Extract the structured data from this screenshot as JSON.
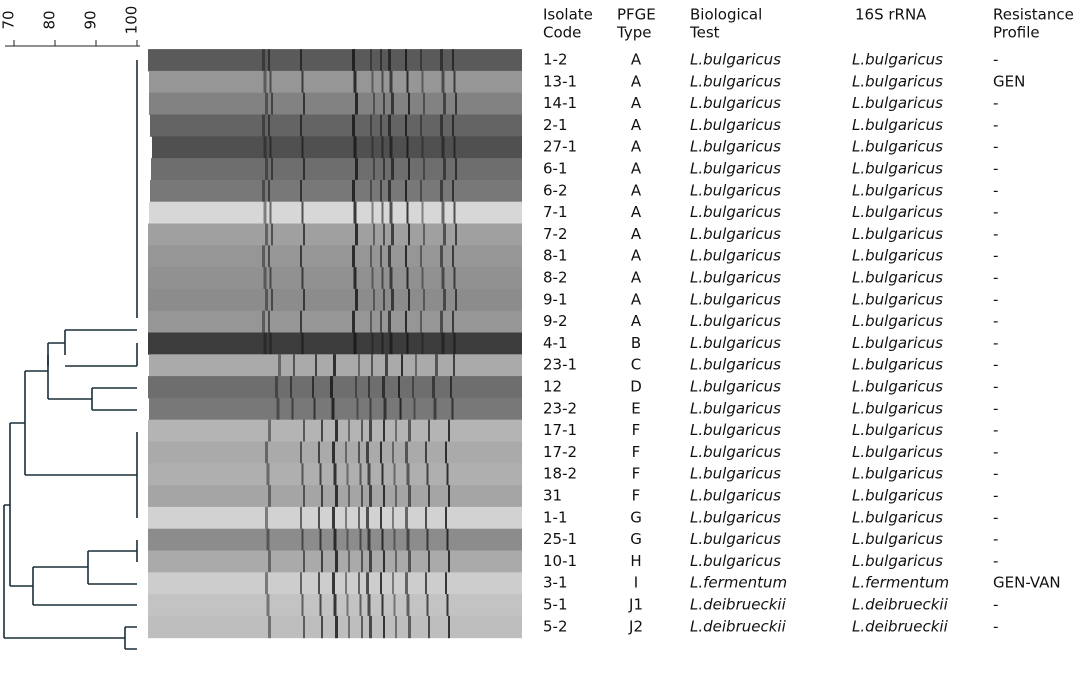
{
  "scale": {
    "ticks": [
      70,
      80,
      90,
      100
    ]
  },
  "table": {
    "headers": [
      [
        "Isolate",
        "Code"
      ],
      [
        "PFGE",
        "Type"
      ],
      [
        "Biological",
        "Test"
      ],
      [
        "16S rRNA"
      ],
      [
        "Resistance",
        "Profile"
      ]
    ],
    "rows": [
      [
        "1-2",
        "A",
        "L.bulgaricus",
        "L.bulgaricus",
        "-"
      ],
      [
        "13-1",
        "A",
        "L.bulgaricus",
        "L.bulgaricus",
        "GEN"
      ],
      [
        "14-1",
        "A",
        "L.bulgaricus",
        "L.bulgaricus",
        "-"
      ],
      [
        "2-1",
        "A",
        "L.bulgaricus",
        "L.bulgaricus",
        "-"
      ],
      [
        "27-1",
        "A",
        "L.bulgaricus",
        "L.bulgaricus",
        "-"
      ],
      [
        "6-1",
        "A",
        "L.bulgaricus",
        "L.bulgaricus",
        "-"
      ],
      [
        "6-2",
        "A",
        "L.bulgaricus",
        "L.bulgaricus",
        "-"
      ],
      [
        "7-1",
        "A",
        "L.bulgaricus",
        "L.bulgaricus",
        "-"
      ],
      [
        "7-2",
        "A",
        "L.bulgaricus",
        "L.bulgaricus",
        "-"
      ],
      [
        "8-1",
        "A",
        "L.bulgaricus",
        "L.bulgaricus",
        "-"
      ],
      [
        "8-2",
        "A",
        "L.bulgaricus",
        "L.bulgaricus",
        "-"
      ],
      [
        "9-1",
        "A",
        "L.bulgaricus",
        "L.bulgaricus",
        "-"
      ],
      [
        "9-2",
        "A",
        "L.bulgaricus",
        "L.bulgaricus",
        "-"
      ],
      [
        "4-1",
        "B",
        "L.bulgaricus",
        "L.bulgaricus",
        "-"
      ],
      [
        "23-1",
        "C",
        "L.bulgaricus",
        "L.bulgaricus",
        "-"
      ],
      [
        "12",
        "D",
        "L.bulgaricus",
        "L.bulgaricus",
        "-"
      ],
      [
        "23-2",
        "E",
        "L.bulgaricus",
        "L.bulgaricus",
        "-"
      ],
      [
        "17-1",
        "F",
        "L.bulgaricus",
        "L.bulgaricus",
        "-"
      ],
      [
        "17-2",
        "F",
        "L.bulgaricus",
        "L.bulgaricus",
        "-"
      ],
      [
        "18-2",
        "F",
        "L.bulgaricus",
        "L.bulgaricus",
        "-"
      ],
      [
        "31",
        "F",
        "L.bulgaricus",
        "L.bulgaricus",
        "-"
      ],
      [
        "1-1",
        "G",
        "L.bulgaricus",
        "L.bulgaricus",
        "-"
      ],
      [
        "25-1",
        "G",
        "L.bulgaricus",
        "L.bulgaricus",
        "-"
      ],
      [
        "10-1",
        "H",
        "L.bulgaricus",
        "L.bulgaricus",
        "-"
      ],
      [
        "3-1",
        "I",
        "L.fermentum",
        "L.fermentum",
        "GEN-VAN"
      ],
      [
        "5-1",
        "J1",
        "L.deibrueckii",
        "L.deibrueckii",
        "-"
      ],
      [
        "5-2",
        "J2",
        "L.deibrueckii",
        "L.deibrueckii",
        "-"
      ]
    ]
  }
}
